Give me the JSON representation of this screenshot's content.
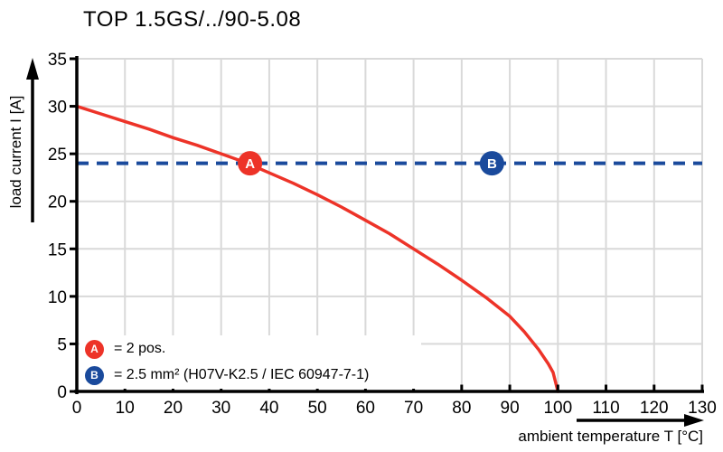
{
  "title": "TOP 1.5GS/../90-5.08",
  "colors": {
    "curve_red": "#ed3328",
    "line_blue": "#1a4a9c",
    "grid": "#d9d9d9",
    "axis": "#000000",
    "background": "#ffffff"
  },
  "chart_data": {
    "type": "line",
    "title": "TOP 1.5GS/../90-5.08",
    "xlabel": "ambient temperature T [°C]",
    "ylabel": "load current I [A]",
    "xlim": [
      0,
      130
    ],
    "ylim": [
      0,
      35
    ],
    "x_ticks": [
      0,
      10,
      20,
      30,
      40,
      50,
      60,
      70,
      80,
      90,
      100,
      110,
      120,
      130
    ],
    "y_ticks": [
      0,
      5,
      10,
      15,
      20,
      25,
      30,
      35
    ],
    "grid": true,
    "series": [
      {
        "name": "derating-curve",
        "style": "solid",
        "color": "#ed3328",
        "x": [
          0,
          5,
          10,
          15,
          20,
          25,
          30,
          35,
          40,
          45,
          50,
          55,
          60,
          65,
          70,
          75,
          80,
          85,
          90,
          93,
          96,
          98,
          99,
          100
        ],
        "y": [
          30,
          29.2,
          28.4,
          27.6,
          26.7,
          25.9,
          25,
          24.1,
          23,
          21.9,
          20.7,
          19.4,
          18,
          16.6,
          15,
          13.4,
          11.7,
          9.9,
          7.9,
          6.3,
          4.4,
          2.9,
          2,
          0
        ]
      },
      {
        "name": "rated-current-reference",
        "style": "dashed-horizontal",
        "color": "#1a4a9c",
        "y": 24
      }
    ],
    "markers": [
      {
        "label": "A",
        "x": 36,
        "y": 24,
        "color": "#ed3328"
      },
      {
        "label": "B",
        "x": 86.3,
        "y": 24,
        "color": "#1a4a9c"
      }
    ]
  },
  "legend": {
    "items": [
      {
        "symbol": "A",
        "color": "#ed3328",
        "text": "= 2 pos."
      },
      {
        "symbol": "B",
        "color": "#1a4a9c",
        "text": "= 2.5 mm² (H07V-K2.5 / IEC 60947-7-1)"
      }
    ]
  }
}
